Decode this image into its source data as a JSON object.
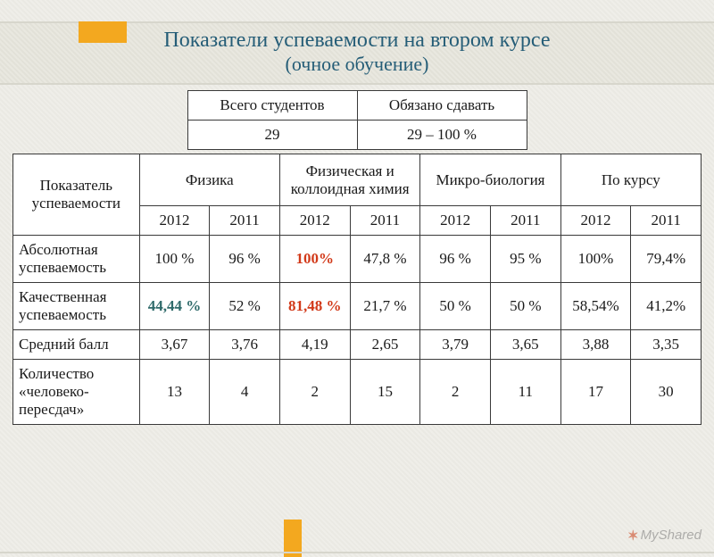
{
  "title": {
    "line1": "Показатели успеваемости на втором курсе",
    "line2": "(очное обучение)"
  },
  "summary": {
    "headers": [
      "Всего студентов",
      "Обязано сдавать"
    ],
    "values": [
      "29",
      "29 – 100 %"
    ]
  },
  "columns": {
    "indicator": "Показатель успеваемости",
    "subjects": [
      "Физика",
      "Физическая и коллоидная химия",
      "Микро-биология",
      "По курсу"
    ],
    "years": [
      "2012",
      "2011",
      "2012",
      "2011",
      "2012",
      "2011",
      "2012",
      "2011"
    ]
  },
  "rows": [
    {
      "label": "Абсолютная успеваемость",
      "cells": [
        {
          "v": "100 %"
        },
        {
          "v": "96 %"
        },
        {
          "v": "100%",
          "hl": "red"
        },
        {
          "v": "47,8 %"
        },
        {
          "v": "96 %"
        },
        {
          "v": "95 %"
        },
        {
          "v": "100%"
        },
        {
          "v": "79,4%"
        }
      ]
    },
    {
      "label": "Качественная успеваемость",
      "cells": [
        {
          "v": "44,44 %",
          "hl": "green"
        },
        {
          "v": "52 %"
        },
        {
          "v": "81,48 %",
          "hl": "red"
        },
        {
          "v": "21,7 %"
        },
        {
          "v": "50 %"
        },
        {
          "v": "50 %"
        },
        {
          "v": "58,54%"
        },
        {
          "v": "41,2%"
        }
      ]
    },
    {
      "label": "Средний балл",
      "cells": [
        {
          "v": "3,67"
        },
        {
          "v": "3,76"
        },
        {
          "v": "4,19"
        },
        {
          "v": "2,65"
        },
        {
          "v": "3,79"
        },
        {
          "v": "3,65"
        },
        {
          "v": "3,88"
        },
        {
          "v": "3,35"
        }
      ]
    },
    {
      "label": "Количество «человеко-пересдач»",
      "cells": [
        {
          "v": "13"
        },
        {
          "v": "4"
        },
        {
          "v": "2"
        },
        {
          "v": "15"
        },
        {
          "v": "2"
        },
        {
          "v": "11"
        },
        {
          "v": "17"
        },
        {
          "v": "30"
        }
      ]
    }
  ],
  "watermark": "MyShared",
  "colors": {
    "title": "#255d77",
    "highlight_red": "#d23a1a",
    "highlight_green": "#2f6a6a",
    "border": "#3a3a3a",
    "accent": "#f3a81f"
  }
}
